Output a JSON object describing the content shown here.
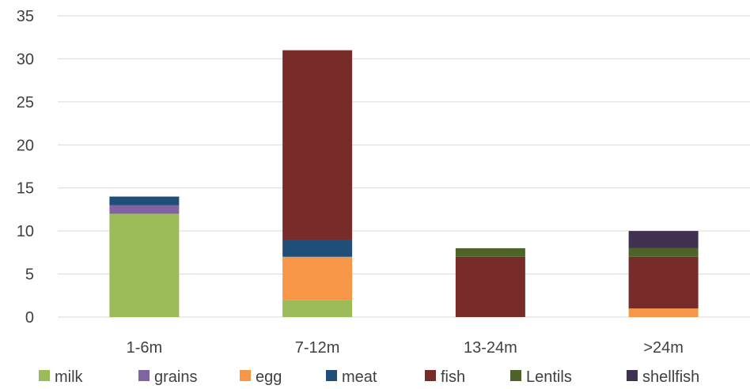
{
  "chart_data": {
    "type": "bar",
    "stacked": true,
    "title": "",
    "xlabel": "",
    "ylabel": "",
    "ylim": [
      0,
      35
    ],
    "yticks": [
      0,
      5,
      10,
      15,
      20,
      25,
      30,
      35
    ],
    "grid": true,
    "legend_position": "bottom",
    "categories": [
      "1-6m",
      "7-12m",
      "13-24m",
      ">24m"
    ],
    "series": [
      {
        "name": "milk",
        "color": "#9bbb59",
        "values": [
          12,
          2,
          0,
          0
        ]
      },
      {
        "name": "grains",
        "color": "#8064a2",
        "values": [
          1,
          0,
          0,
          0
        ]
      },
      {
        "name": "egg",
        "color": "#f79646",
        "values": [
          0,
          5,
          0,
          1
        ]
      },
      {
        "name": "meat",
        "color": "#1f4e79",
        "values": [
          1,
          2,
          0,
          0
        ]
      },
      {
        "name": "fish",
        "color": "#772c2a",
        "values": [
          0,
          22,
          7,
          6
        ]
      },
      {
        "name": "Lentils",
        "color": "#4f6228",
        "values": [
          0,
          0,
          1,
          1
        ]
      },
      {
        "name": "shellfish",
        "color": "#403151",
        "values": [
          0,
          0,
          0,
          2
        ]
      }
    ]
  }
}
